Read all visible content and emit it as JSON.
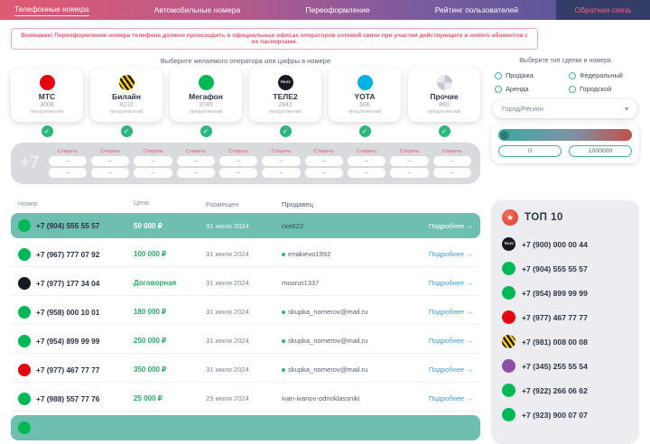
{
  "colors": {
    "accent_teal": "#43b0a4",
    "highlight_row": "#6fbfb1",
    "price_green": "#2aa968",
    "link_blue": "#3e9ad6",
    "warning_red": "#e4556e",
    "nav_gradient_start": "#e25a72",
    "nav_gradient_end": "#4a5694"
  },
  "icons": {
    "check": "✓",
    "arrow_right": "→",
    "chevron_down": "▾",
    "dash": "–",
    "star": "★"
  },
  "nav": {
    "items": [
      {
        "label": "Телефонные номера"
      },
      {
        "label": "Автомобильные номера"
      },
      {
        "label": "Переоформление"
      },
      {
        "label": "Рейтинг пользователей"
      },
      {
        "label": "Обратная связь"
      }
    ]
  },
  "warning": "Внимание! Переоформление номера телефона должно происходить в официальных офисах операторов сотовой связи при участии действующего и нового абонентов с их паспортами.",
  "operators": {
    "title": "Выберите желаемого оператора или цифры в номере",
    "items": [
      {
        "name": "МТС",
        "count": "3006",
        "unit": "предложений",
        "color": "#e30611"
      },
      {
        "name": "Билайн",
        "count": "4210",
        "unit": "предложений",
        "color": "#ffd200"
      },
      {
        "name": "Мегафон",
        "count": "3745",
        "unit": "предложений",
        "color": "#00b956"
      },
      {
        "name": "ТЕЛЕ2",
        "count": "2842",
        "unit": "предложения",
        "color": "#161b22",
        "logo_text": "TELE2"
      },
      {
        "name": "YOTA",
        "count": "606",
        "unit": "предложений",
        "color": "#00b2e3"
      },
      {
        "name": "Прочие",
        "count": "960",
        "unit": "предложений",
        "color": "#c3c8d2"
      }
    ]
  },
  "number_input": {
    "prefix": "+7",
    "erase_label": "Стереть"
  },
  "filter": {
    "title": "Выберите тип сделки и номера",
    "options": [
      {
        "label": "Продажа"
      },
      {
        "label": "Федеральный"
      },
      {
        "label": "Аренда"
      },
      {
        "label": "Городской"
      }
    ],
    "region_label": "Город/Регион",
    "price_min": "0",
    "price_max": "1000000"
  },
  "table": {
    "headers": [
      "Номер",
      "Цена",
      "Размещен",
      "Продавец"
    ],
    "more_label": "Подробнее",
    "rows": [
      {
        "number": "+7 (904) 555 55 57",
        "price": "50 000 ₽",
        "date": "31 июля 2024",
        "seller": "ске622",
        "operator": "megafon",
        "highlighted": true
      },
      {
        "number": "+7 (967) 777 07 92",
        "price": "100 000 ₽",
        "date": "31 июля 2024",
        "seller": "enakievo1992",
        "operator": "megafon",
        "online": true
      },
      {
        "number": "+7 (977) 177 34 04",
        "price": "Договорная",
        "date": "31 июля 2024",
        "seller": "moonzi1337",
        "operator": "tele2"
      },
      {
        "number": "+7 (958) 000 10 01",
        "price": "180 000 ₽",
        "date": "31 июля 2024",
        "seller": "skupka_nomerov@mail.ru",
        "operator": "megafon",
        "online": true
      },
      {
        "number": "+7 (954) 899 99 99",
        "price": "250 000 ₽",
        "date": "31 июля 2024",
        "seller": "skupka_nomerov@mail.ru",
        "operator": "megafon",
        "online": true
      },
      {
        "number": "+7 (977) 467 77 77",
        "price": "350 000 ₽",
        "date": "31 июля 2024",
        "seller": "skupka_nomerov@mail.ru",
        "operator": "mts",
        "online": true
      },
      {
        "number": "+7 (988) 557 77 76",
        "price": "25 000 ₽",
        "date": "29 июля 2024",
        "seller": "ivan-ivanov-odnoklassniki",
        "operator": "megafon"
      }
    ]
  },
  "top10": {
    "title": "ТОП 10",
    "items": [
      {
        "number": "+7 (900) 000 00 44",
        "operator": "tele2"
      },
      {
        "number": "+7 (904) 555 55 57",
        "operator": "megafon"
      },
      {
        "number": "+7 (954) 899 99 99",
        "operator": "megafon"
      },
      {
        "number": "+7 (977) 467 77 77",
        "operator": "mts"
      },
      {
        "number": "+7 (981) 008 00 08",
        "operator": "beeline"
      },
      {
        "number": "+7 (345) 255 55 54",
        "operator": "other"
      },
      {
        "number": "+7 (922) 266 06 62",
        "operator": "megafon"
      },
      {
        "number": "+7 (923) 900 07 07",
        "operator": "megafon"
      }
    ]
  }
}
